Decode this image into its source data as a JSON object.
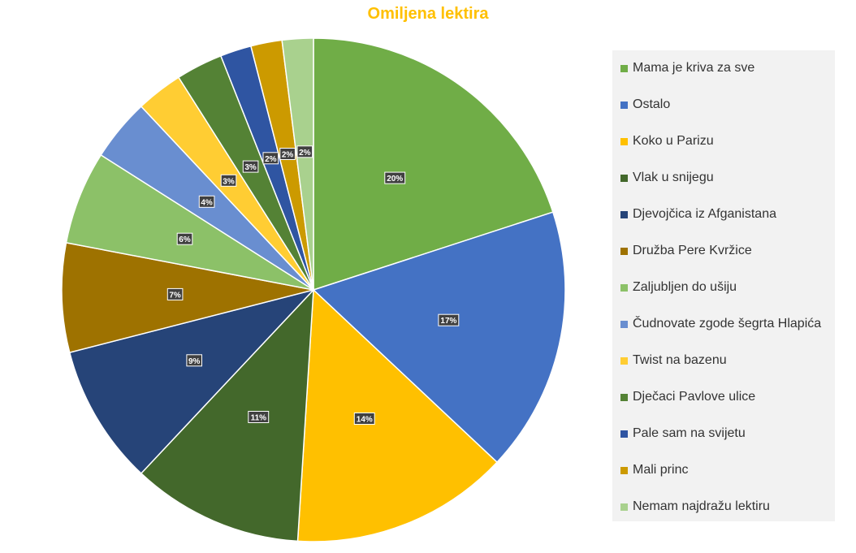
{
  "chart_data": {
    "type": "pie",
    "title": "Omiljena lektira",
    "legend_position": "right",
    "slices": [
      {
        "name": "Mama je kriva za sve",
        "value": 20,
        "label": "20%",
        "color": "#70ad47"
      },
      {
        "name": "Ostalo",
        "value": 17,
        "label": "17%",
        "color": "#4472c4"
      },
      {
        "name": "Koko u Parizu",
        "value": 14,
        "label": "14%",
        "color": "#ffc000"
      },
      {
        "name": "Vlak u snijegu",
        "value": 11,
        "label": "11%",
        "color": "#43682b"
      },
      {
        "name": "Djevojčica iz Afganistana",
        "value": 9,
        "label": "9%",
        "color": "#264478"
      },
      {
        "name": "Družba Pere Kvržice",
        "value": 7,
        "label": "7%",
        "color": "#9e7200"
      },
      {
        "name": "Zaljubljen do ušiju",
        "value": 6,
        "label": "6%",
        "color": "#8cc168"
      },
      {
        "name": "Čudnovate zgode šegrta Hlapića",
        "value": 4,
        "label": "4%",
        "color": "#698ed0"
      },
      {
        "name": "Twist na bazenu",
        "value": 3,
        "label": "3%",
        "color": "#ffcd33"
      },
      {
        "name": "Dječaci Pavlove ulice",
        "value": 3,
        "label": "3%",
        "color": "#548235"
      },
      {
        "name": "Pale sam na svijetu",
        "value": 2,
        "label": "2%",
        "color": "#2f55a2"
      },
      {
        "name": "Mali princ",
        "value": 2,
        "label": "2%",
        "color": "#cc9a00"
      },
      {
        "name": "Nemam najdražu lektiru",
        "value": 2,
        "label": "2%",
        "color": "#a9d18e"
      }
    ]
  }
}
